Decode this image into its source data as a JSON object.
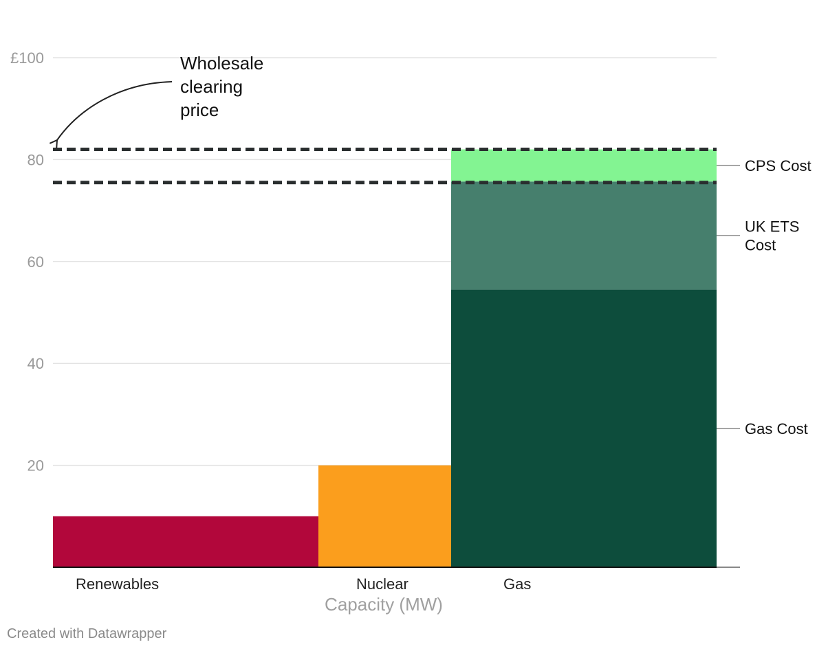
{
  "chart_data": {
    "type": "bar",
    "subtype": "variable-width stacked bar (merit order)",
    "xlabel": "Capacity (MW)",
    "ylabel": "",
    "ylim": [
      0,
      100
    ],
    "y_ticks": [
      {
        "value": 100,
        "label": "£100"
      },
      {
        "value": 80,
        "label": "80"
      },
      {
        "value": 60,
        "label": "60"
      },
      {
        "value": 40,
        "label": "40"
      },
      {
        "value": 20,
        "label": "20"
      }
    ],
    "grid": true,
    "categories": [
      "Renewables",
      "Nuclear",
      "Gas"
    ],
    "bars": [
      {
        "category": "Renewables",
        "capacity_share": 0.4,
        "segments": [
          {
            "value": 10,
            "color": "#b2073b"
          }
        ]
      },
      {
        "category": "Nuclear",
        "capacity_share": 0.2,
        "segments": [
          {
            "value": 20,
            "color": "#fb9e1d"
          }
        ]
      },
      {
        "category": "Gas",
        "capacity_share": 0.4,
        "segments": [
          {
            "name": "Gas Cost",
            "value": 54.5,
            "color": "#0d4d3c"
          },
          {
            "name": "UK ETS Cost",
            "value": 21.2,
            "color": "#467f6d"
          },
          {
            "name": "CPS Cost",
            "value": 6.3,
            "color": "#83f492"
          }
        ]
      }
    ],
    "segment_labels": [
      {
        "name": "CPS Cost",
        "lines": [
          "CPS Cost"
        ]
      },
      {
        "name": "UK ETS Cost",
        "lines": [
          "UK ETS",
          "Cost"
        ]
      },
      {
        "name": "Gas Cost",
        "lines": [
          "Gas Cost"
        ]
      }
    ],
    "reference_lines": [
      {
        "value": 82,
        "style": "dashed",
        "color": "#2a2e2f"
      },
      {
        "value": 75.5,
        "style": "dashed",
        "color": "#2a2e2f"
      }
    ],
    "annotations": [
      {
        "lines": [
          "Wholesale",
          "clearing",
          "price"
        ]
      }
    ]
  },
  "credit": "Created with Datawrapper"
}
